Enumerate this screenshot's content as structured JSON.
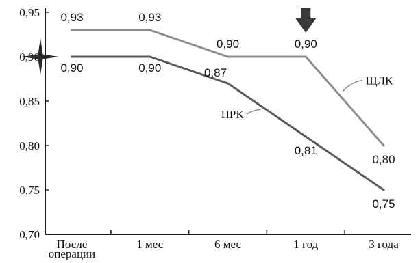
{
  "chart_data": {
    "type": "line",
    "categories": [
      "После операции",
      "1 мес",
      "6 мес",
      "1 год",
      "3 года"
    ],
    "category_lines": [
      [
        "После",
        "операции"
      ],
      [
        "1 мес"
      ],
      [
        "6 мес"
      ],
      [
        "1 год"
      ],
      [
        "3 года"
      ]
    ],
    "series": [
      {
        "name": "ЩЛК",
        "values": [
          0.93,
          0.93,
          0.9,
          0.9,
          0.8
        ],
        "labels": [
          "0,93",
          "0,93",
          "0,90",
          "0,90",
          "0,80"
        ],
        "color": "#8c8c8c"
      },
      {
        "name": "ПРК",
        "values": [
          0.9,
          0.9,
          0.87,
          0.81,
          0.75
        ],
        "labels": [
          "0,90",
          "0,90",
          "0,87",
          "0,81",
          "0,75"
        ],
        "color": "#595959"
      }
    ],
    "ylim": [
      0.7,
      0.95
    ],
    "yticks": [
      0.7,
      0.75,
      0.8,
      0.85,
      0.9,
      0.95
    ],
    "ytick_labels": [
      "0,70",
      "0,75",
      "0,80",
      "0,85",
      "0,90",
      "0,95"
    ],
    "grid": false,
    "legend": "none",
    "annotations": [
      {
        "name": "down-arrow-icon",
        "category": "1 год",
        "color": "#3a3a3a"
      },
      {
        "name": "star-icon",
        "category": "После операции",
        "value": 0.9,
        "color": "#2a2a2a"
      }
    ]
  }
}
